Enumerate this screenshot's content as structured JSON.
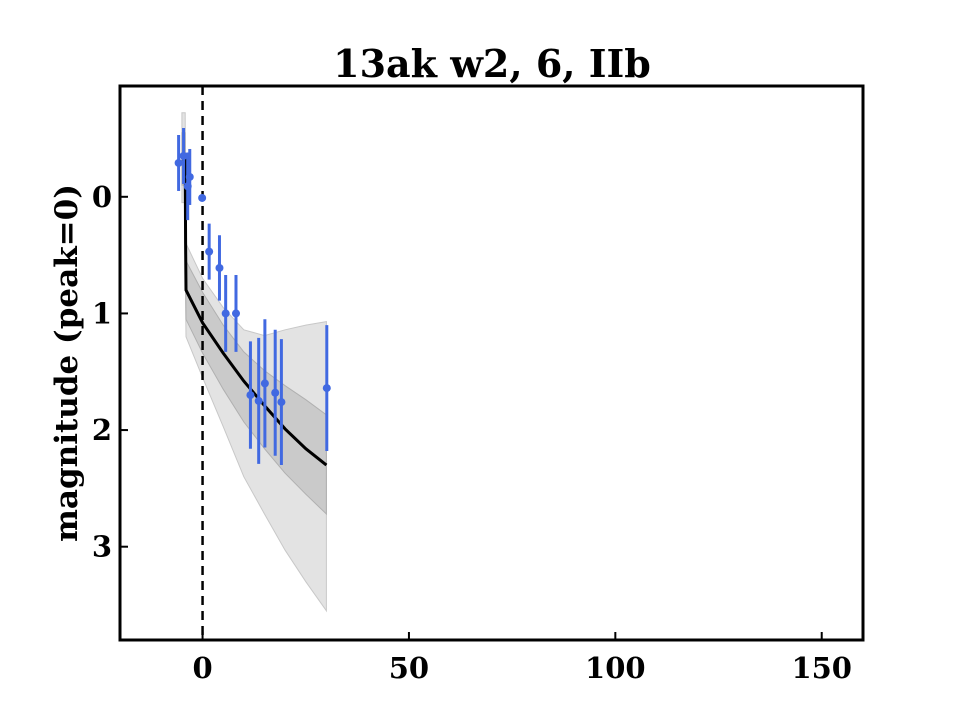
{
  "chart_data": {
    "type": "scatter",
    "title": "13ak w2, 6, IIb",
    "xlabel": "",
    "ylabel": "magnitude (peak=0)",
    "xlim": [
      -20,
      160
    ],
    "ylim": [
      3.8,
      -0.95
    ],
    "y_inverted": true,
    "xticks": [
      0,
      50,
      100,
      150
    ],
    "yticks": [
      0,
      1,
      2,
      3
    ],
    "xtick_labels": [
      "0",
      "50",
      "100",
      "150"
    ],
    "ytick_labels": [
      "0",
      "1",
      "2",
      "3"
    ],
    "grid": false,
    "peak_line_x": 0,
    "colors": {
      "points": "#4169e1",
      "model": "#000000",
      "band_outer": "#d9d9d9",
      "band_inner": "#bfbfbf"
    },
    "observations": [
      {
        "x": -5.8,
        "y": -0.29,
        "err": 0.24
      },
      {
        "x": -4.6,
        "y": -0.35,
        "err": 0.24
      },
      {
        "x": -3.6,
        "y": -0.09,
        "err": 0.29
      },
      {
        "x": -3.1,
        "y": -0.17,
        "err": 0.24
      },
      {
        "x": -0.1,
        "y": 0.01,
        "err": 0.0
      },
      {
        "x": 1.6,
        "y": 0.47,
        "err": 0.24
      },
      {
        "x": 4.1,
        "y": 0.61,
        "err": 0.28
      },
      {
        "x": 5.6,
        "y": 1.0,
        "err": 0.33
      },
      {
        "x": 8.1,
        "y": 1.0,
        "err": 0.33
      },
      {
        "x": 11.6,
        "y": 1.7,
        "err": 0.46
      },
      {
        "x": 13.6,
        "y": 1.75,
        "err": 0.54
      },
      {
        "x": 15.1,
        "y": 1.6,
        "err": 0.55
      },
      {
        "x": 17.6,
        "y": 1.68,
        "err": 0.54
      },
      {
        "x": 19.1,
        "y": 1.76,
        "err": 0.54
      },
      {
        "x": 30.1,
        "y": 1.64,
        "err": 0.54
      }
    ],
    "model": {
      "x": [
        -5,
        -4.2,
        -4.1,
        -4,
        0,
        5,
        10,
        15,
        20,
        25,
        30
      ],
      "y": [
        -0.32,
        -0.32,
        0.4,
        0.8,
        1.08,
        1.34,
        1.58,
        1.79,
        1.99,
        2.16,
        2.3
      ],
      "inner_lo": [
        -0.55,
        -0.55,
        0.2,
        0.55,
        0.82,
        1.1,
        1.33,
        1.49,
        1.62,
        1.74,
        1.87
      ],
      "inner_hi": [
        -0.1,
        -0.1,
        0.65,
        1.05,
        1.34,
        1.65,
        1.93,
        2.16,
        2.37,
        2.55,
        2.72
      ],
      "outer_lo": [
        -0.72,
        -0.72,
        0.0,
        0.4,
        0.7,
        0.95,
        1.14,
        1.19,
        1.14,
        1.1,
        1.07
      ],
      "outer_hi": [
        0.05,
        0.05,
        0.9,
        1.2,
        1.55,
        1.97,
        2.4,
        2.72,
        3.03,
        3.3,
        3.55
      ]
    }
  }
}
